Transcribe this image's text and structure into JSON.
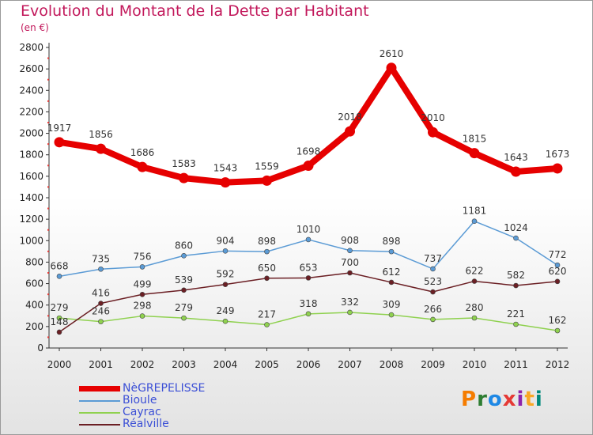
{
  "header": {
    "title": "Evolution du Montant de la Dette par Habitant",
    "subtitle": "(en €)"
  },
  "brand": {
    "logo_text": "Proxiti",
    "colors": [
      "#f57c00",
      "#2e7d32",
      "#1e88e5",
      "#e53935",
      "#8e24aa",
      "#f9a825",
      "#00897b"
    ]
  },
  "chart_data": {
    "type": "line",
    "title": "Evolution du Montant de la Dette par Habitant",
    "subtitle": "(en €)",
    "xlabel": "",
    "ylabel": "",
    "categories": [
      "2000",
      "2001",
      "2002",
      "2003",
      "2004",
      "2005",
      "2006",
      "2007",
      "2008",
      "2009",
      "2010",
      "2011",
      "2012"
    ],
    "ylim": [
      0,
      2800
    ],
    "yticks": [
      0,
      200,
      400,
      600,
      800,
      1000,
      1200,
      1400,
      1600,
      1800,
      2000,
      2200,
      2400,
      2600,
      2800
    ],
    "grid": false,
    "legend_position": "bottom-left",
    "series": [
      {
        "name": "NèGREPELISSE",
        "color": "#e60000",
        "values": [
          1917,
          1856,
          1686,
          1583,
          1543,
          1559,
          1698,
          2018,
          2610,
          2010,
          1815,
          1643,
          1673
        ]
      },
      {
        "name": "Bioule",
        "color": "#5b9bd5",
        "values": [
          668,
          735,
          756,
          860,
          904,
          898,
          1010,
          908,
          898,
          737,
          1181,
          1024,
          772
        ]
      },
      {
        "name": "Cayrac",
        "color": "#8fd14f",
        "values": [
          279,
          246,
          298,
          279,
          249,
          217,
          318,
          332,
          309,
          266,
          280,
          221,
          162
        ]
      },
      {
        "name": "Réalville",
        "color": "#6b1f24",
        "values": [
          148,
          416,
          499,
          539,
          592,
          650,
          653,
          700,
          612,
          523,
          622,
          582,
          620
        ]
      }
    ]
  }
}
